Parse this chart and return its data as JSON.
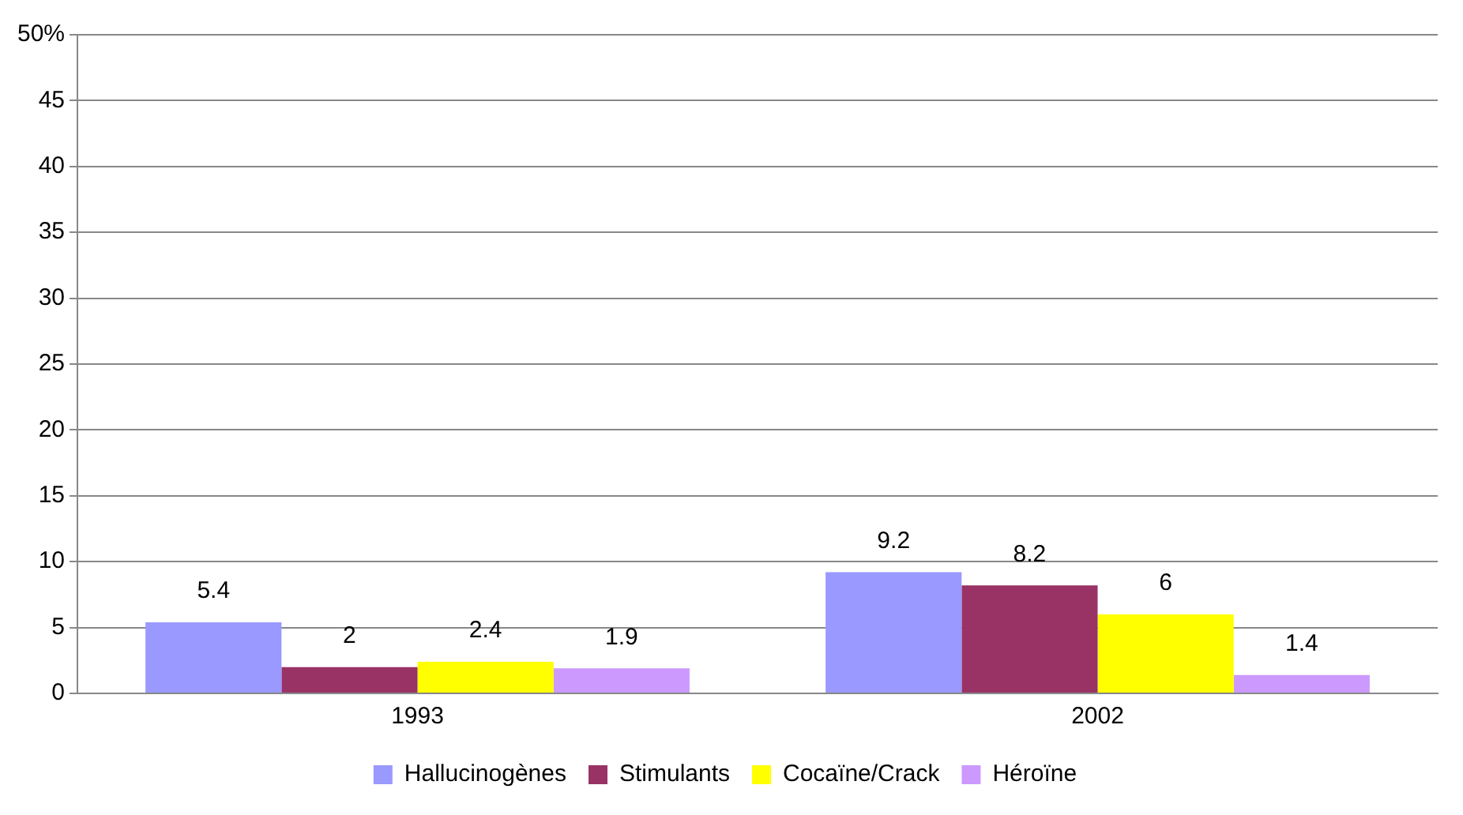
{
  "chart_data": {
    "type": "bar",
    "categories": [
      "1993",
      "2002"
    ],
    "series": [
      {
        "name": "Hallucinogènes",
        "color": "#9999ff",
        "values": [
          5.4,
          9.2
        ]
      },
      {
        "name": "Stimulants",
        "color": "#993366",
        "values": [
          2,
          8.2
        ]
      },
      {
        "name": "Cocaïne/Crack",
        "color": "#ffff00",
        "values": [
          2.4,
          6
        ]
      },
      {
        "name": "Héroïne",
        "color": "#cc99ff",
        "values": [
          1.9,
          1.4
        ]
      }
    ],
    "ylim": [
      0,
      50
    ],
    "yticks": [
      0,
      5,
      10,
      15,
      20,
      25,
      30,
      35,
      40,
      45,
      {
        "value": 50,
        "label": "50%"
      }
    ],
    "grid": "y",
    "legend": "bottom",
    "data_labels": true
  }
}
